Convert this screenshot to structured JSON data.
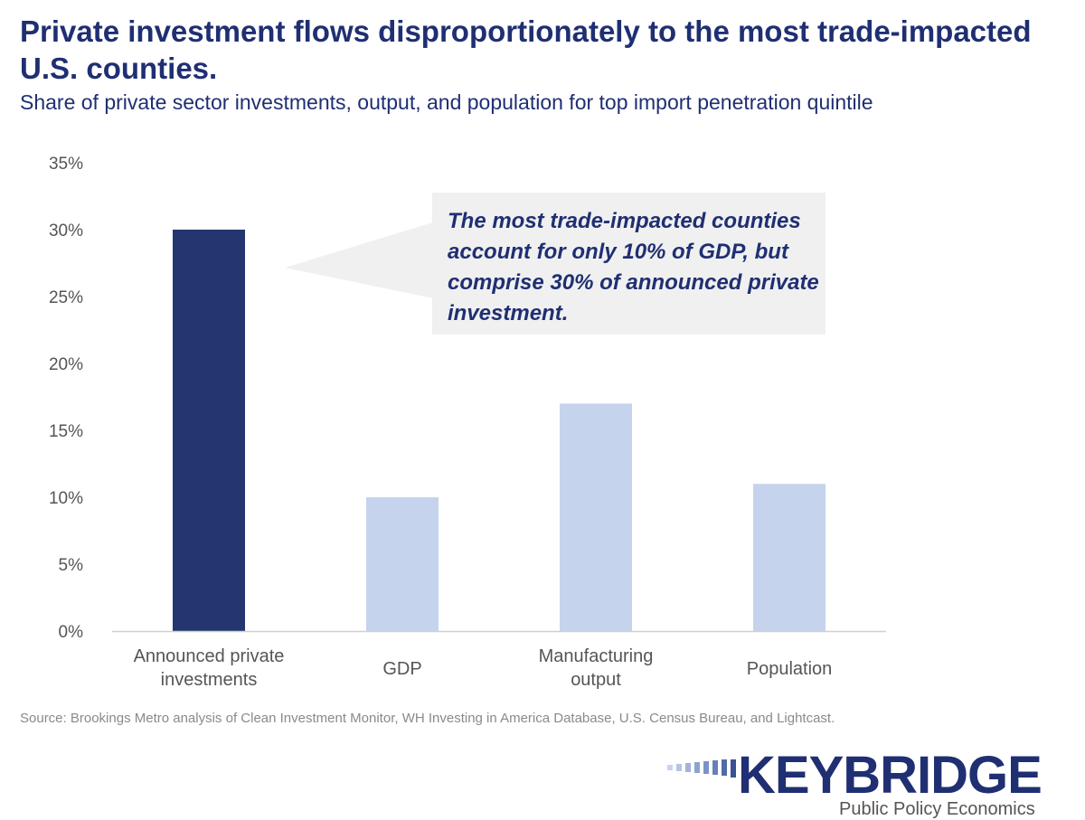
{
  "header": {
    "title": "Private investment flows disproportionately to the most trade-impacted U.S. counties.",
    "subtitle": "Share of private sector investments, output, and population for top import penetration quintile"
  },
  "chart_data": {
    "type": "bar",
    "categories": [
      [
        "Announced private",
        "investments"
      ],
      [
        "GDP"
      ],
      [
        "Manufacturing",
        "output"
      ],
      [
        "Population"
      ]
    ],
    "values": [
      30,
      10,
      17,
      11
    ],
    "bar_colors": [
      "#243570",
      "#c5d4ec",
      "#c5d4ec",
      "#c5d4ec"
    ],
    "ylim": [
      0,
      35
    ],
    "yticks": [
      0,
      5,
      10,
      15,
      20,
      25,
      30,
      35
    ],
    "ytick_labels": [
      "0%",
      "5%",
      "10%",
      "15%",
      "20%",
      "25%",
      "30%",
      "35%"
    ],
    "grid": false,
    "annotation": "The most trade-impacted counties account for only 10% of GDP, but comprise 30% of announced private investment."
  },
  "source": "Source: Brookings Metro analysis of Clean Investment Monitor, WH Investing in America Database, U.S. Census Bureau, and Lightcast.",
  "logo": {
    "name": "KEYBRIDGE",
    "tagline": "Public Policy Economics"
  },
  "colors": {
    "brand_navy": "#1f2f72",
    "highlight_bar": "#243570",
    "light_bar": "#c5d4ec",
    "callout_bg": "#f0f0f0"
  }
}
